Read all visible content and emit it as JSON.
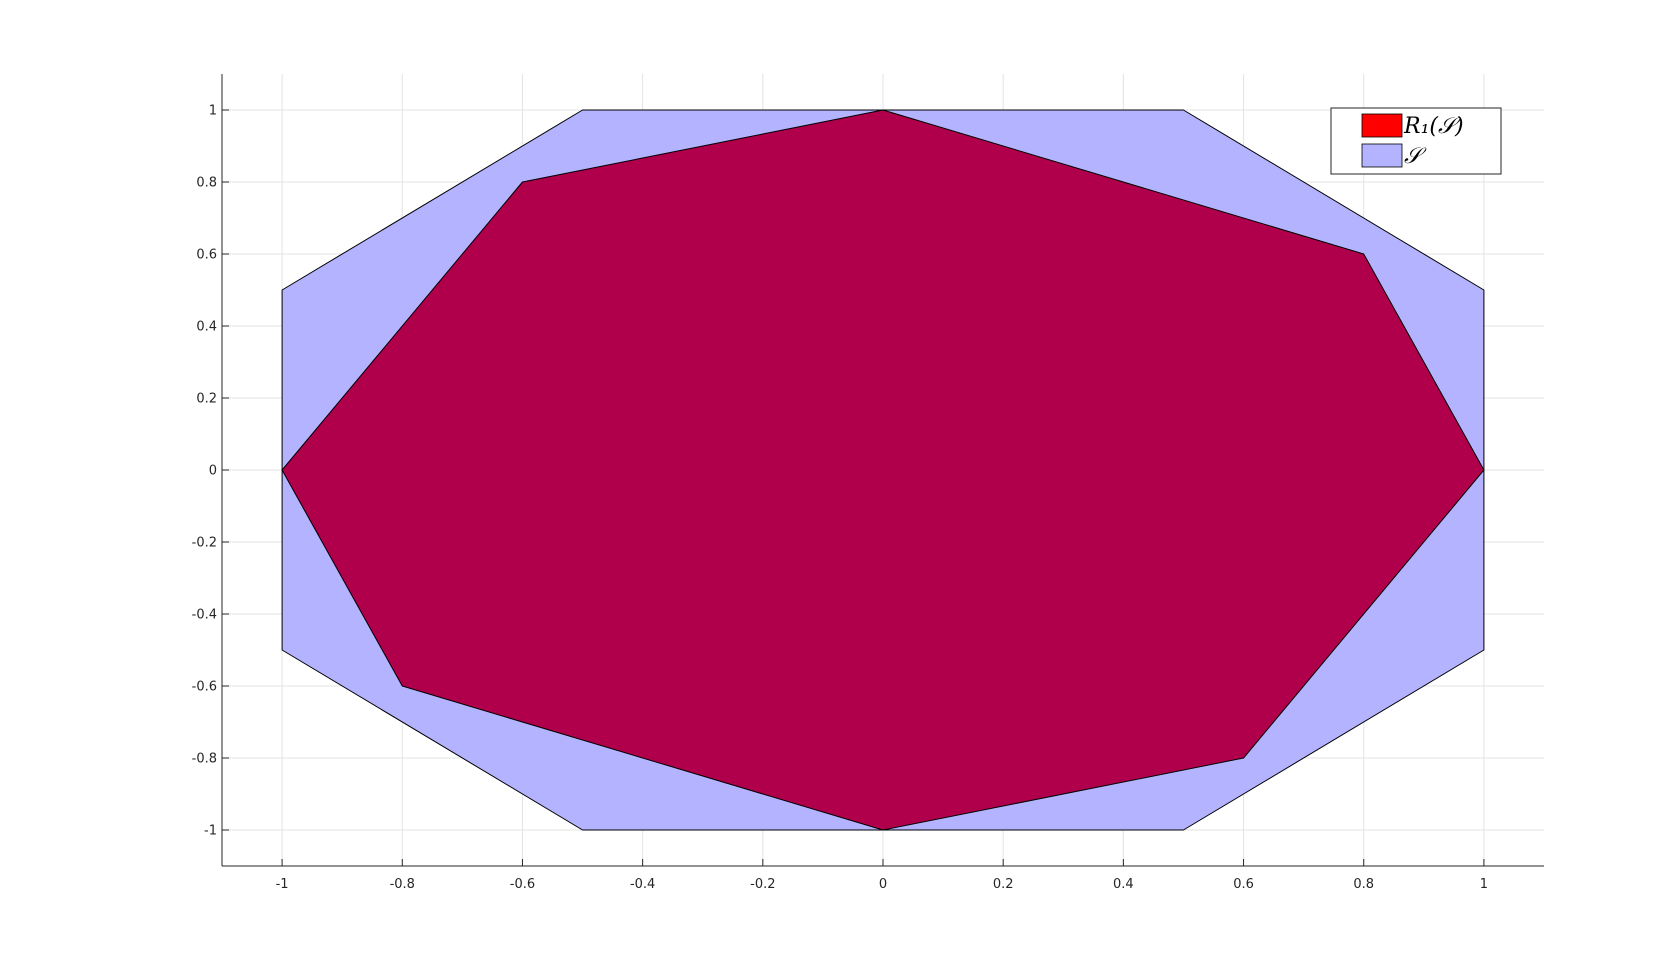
{
  "chart_data": {
    "type": "area",
    "title": "",
    "xlabel": "",
    "ylabel": "",
    "xlim": [
      -1.1,
      1.1
    ],
    "ylim": [
      -1.1,
      1.1
    ],
    "xticks": [
      -1,
      -0.8,
      -0.6,
      -0.4,
      -0.2,
      0,
      0.2,
      0.4,
      0.6,
      0.8,
      1
    ],
    "yticks": [
      -1,
      -0.8,
      -0.6,
      -0.4,
      -0.2,
      0,
      0.2,
      0.4,
      0.6,
      0.8,
      1
    ],
    "grid": true,
    "legend_position": "top-right",
    "series": [
      {
        "name": "S",
        "legend_label": "𝒮",
        "color": "#b3b3ff",
        "vertices": [
          [
            -0.5,
            1
          ],
          [
            0.5,
            1
          ],
          [
            1,
            0.5
          ],
          [
            1,
            -0.5
          ],
          [
            0.5,
            -1
          ],
          [
            -0.5,
            -1
          ],
          [
            -1,
            -0.5
          ],
          [
            -1,
            0.5
          ]
        ]
      },
      {
        "name": "R1(S)",
        "legend_label": "R₁(𝒮)",
        "color": "#b1004b",
        "legend_color": "#ff0000",
        "vertices": [
          [
            0,
            1
          ],
          [
            0.8,
            0.6
          ],
          [
            1,
            0
          ],
          [
            0.6,
            -0.8
          ],
          [
            0,
            -1
          ],
          [
            -0.8,
            -0.6
          ],
          [
            -1,
            0
          ],
          [
            -0.6,
            0.8
          ]
        ]
      }
    ]
  }
}
